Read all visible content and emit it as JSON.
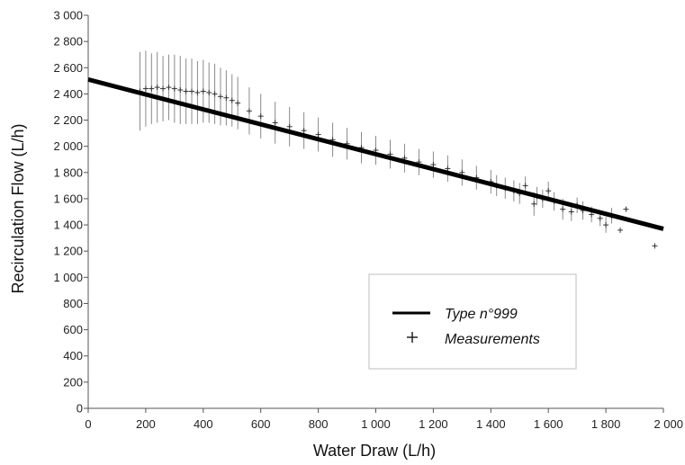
{
  "chart_data": {
    "type": "scatter",
    "xlabel": "Water Draw (L/h)",
    "ylabel": "Recirculation Flow (L/h)",
    "xlim": [
      0,
      2000
    ],
    "ylim": [
      0,
      3000
    ],
    "x_ticks": [
      "0",
      "200",
      "400",
      "600",
      "800",
      "1 000",
      "1 200",
      "1 400",
      "1 600",
      "1 800",
      "2 000"
    ],
    "y_ticks": [
      "0",
      "200",
      "400",
      "600",
      "800",
      "1 000",
      "1 200",
      "1 400",
      "1 600",
      "1 800",
      "2 000",
      "2 200",
      "2 400",
      "2 600",
      "2 800",
      "3 000"
    ],
    "legend_position": "bottom-right",
    "series": [
      {
        "name": "Type n°999",
        "kind": "line",
        "color": "#000000",
        "x": [
          0,
          2000
        ],
        "y": [
          2510,
          1370
        ]
      },
      {
        "name": "Measurements",
        "kind": "points",
        "marker": "+",
        "color": "#333333",
        "x": [
          180,
          200,
          220,
          240,
          260,
          280,
          300,
          320,
          340,
          360,
          380,
          400,
          420,
          440,
          460,
          480,
          500,
          520,
          560,
          600,
          650,
          700,
          750,
          800,
          850,
          900,
          950,
          1000,
          1050,
          1100,
          1150,
          1200,
          1250,
          1300,
          1350,
          1400,
          1420,
          1450,
          1480,
          1500,
          1520,
          1550,
          1560,
          1580,
          1600,
          1620,
          1650,
          1680,
          1700,
          1720,
          1750,
          1780,
          1800,
          1820,
          1850,
          1870,
          1970
        ],
        "y": [
          2420,
          2440,
          2440,
          2450,
          2440,
          2450,
          2440,
          2430,
          2420,
          2420,
          2410,
          2420,
          2410,
          2400,
          2380,
          2370,
          2350,
          2330,
          2270,
          2230,
          2180,
          2150,
          2120,
          2090,
          2050,
          2020,
          1990,
          1970,
          1940,
          1910,
          1880,
          1860,
          1830,
          1800,
          1760,
          1730,
          1700,
          1680,
          1660,
          1640,
          1700,
          1560,
          1620,
          1600,
          1660,
          1580,
          1520,
          1500,
          1550,
          1510,
          1480,
          1450,
          1400,
          1470,
          1360,
          1520,
          1240
        ],
        "err": [
          300,
          290,
          270,
          270,
          250,
          250,
          260,
          260,
          250,
          250,
          240,
          240,
          230,
          230,
          220,
          210,
          200,
          200,
          180,
          170,
          160,
          150,
          140,
          130,
          130,
          120,
          120,
          110,
          110,
          110,
          100,
          100,
          100,
          100,
          90,
          90,
          80,
          80,
          80,
          80,
          70,
          90,
          70,
          70,
          70,
          70,
          80,
          70,
          60,
          70,
          60,
          60,
          60,
          60,
          0,
          0,
          0
        ]
      }
    ]
  }
}
